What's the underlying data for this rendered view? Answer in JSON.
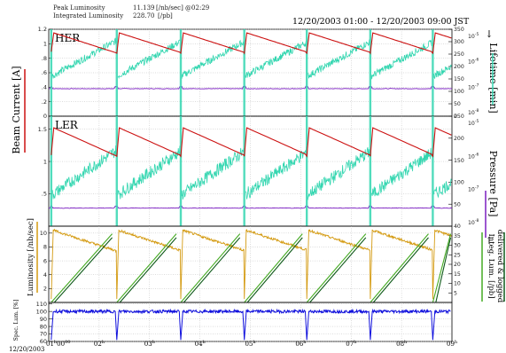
{
  "header": {
    "peak_label": "Peak Luminosity",
    "peak_value": "11.139",
    "peak_unit": "[/nb/sec] @02:29",
    "integrated_label": "Integrated Luminosity",
    "integrated_value": "228.70",
    "integrated_unit": "[/pb]",
    "time_range": "12/20/2003 01:00 - 12/20/2003 09:00 JST"
  },
  "colors": {
    "current": "#cc1111",
    "lifetime": "#33d6b0",
    "pressure": "#7a1ec0",
    "lum_online": "#d49a10",
    "lum_delivered": "#44aa22",
    "lum_logged": "#0f5a1a",
    "spec_lum": "#1010dd"
  },
  "chart_data": [
    {
      "type": "line",
      "ring_label": "HER",
      "ylabel": "Beam Current [A]",
      "y2label": "Lifetime [min]",
      "y3label": "Pressure [Pa]",
      "ylim": [
        0,
        1.2
      ],
      "yticks": [
        0,
        0.2,
        0.4,
        0.6,
        0.8,
        1.0,
        1.2
      ],
      "ytick_labels": [
        "0",
        ".2",
        ".4",
        ".6",
        ".8",
        "1",
        "1.2"
      ],
      "y2lim": [
        0,
        350
      ],
      "y2ticks": [
        0,
        50,
        100,
        150,
        200,
        250,
        300,
        350
      ],
      "y3_ticks": [
        "10-5",
        "10-6",
        "10-7",
        "10-8"
      ],
      "x_hours": [
        1,
        9
      ],
      "injection_hours": [
        1.05,
        2.35,
        3.62,
        4.88,
        6.12,
        7.38,
        8.62
      ],
      "current_peak": 1.15,
      "current_min": 0.87,
      "lifetime_start": 160,
      "lifetime_end": 300,
      "pressure_level": 0.38,
      "series": [
        {
          "name": "Beam Current",
          "color_key": "current"
        },
        {
          "name": "Lifetime",
          "color_key": "lifetime"
        },
        {
          "name": "Pressure",
          "color_key": "pressure"
        }
      ]
    },
    {
      "type": "line",
      "ring_label": "LER",
      "ylim": [
        0,
        1.7
      ],
      "yticks": [
        0.5,
        1.0,
        1.5
      ],
      "ytick_labels": [
        ".5",
        "1",
        "1.5"
      ],
      "y2lim": [
        0,
        250
      ],
      "y2ticks": [
        50,
        100,
        150,
        200,
        250
      ],
      "y3_ticks": [
        "10-5",
        "10-6",
        "10-7",
        "10-8"
      ],
      "x_hours": [
        1,
        9
      ],
      "injection_hours": [
        1.05,
        2.35,
        3.62,
        4.88,
        6.12,
        7.38,
        8.62
      ],
      "current_peak": 1.52,
      "current_min": 1.08,
      "lifetime_start": 70,
      "lifetime_end": 170,
      "pressure_level": 0.28,
      "series": [
        {
          "name": "Beam Current",
          "color_key": "current"
        },
        {
          "name": "Lifetime",
          "color_key": "lifetime"
        },
        {
          "name": "Pressure",
          "color_key": "pressure"
        }
      ]
    },
    {
      "type": "line",
      "ylabel": "Luminosity [/nb/sec]",
      "y2label_line1": "Integ. Lum. [/pb]",
      "y2label_line2": "delivered & logged",
      "ylim": [
        0,
        11
      ],
      "yticks": [
        2,
        4,
        6,
        8,
        10
      ],
      "ytick_labels": [
        "2",
        "4",
        "6",
        "8",
        "10"
      ],
      "y2lim": [
        0,
        40
      ],
      "y2ticks": [
        5,
        10,
        15,
        20,
        25,
        30,
        35,
        40
      ],
      "x_hours": [
        1,
        9
      ],
      "injection_hours": [
        1.05,
        2.35,
        3.62,
        4.88,
        6.12,
        7.38,
        8.62
      ],
      "lum_peak": 10.5,
      "lum_min": 7.5,
      "integ_end_delivered": 36,
      "integ_end_logged": 34,
      "series": [
        {
          "name": "Luminosity",
          "color_key": "lum_online"
        },
        {
          "name": "Integ. Lum. delivered",
          "color_key": "lum_delivered"
        },
        {
          "name": "Integ. Lum. logged",
          "color_key": "lum_logged"
        }
      ]
    },
    {
      "type": "line",
      "ylabel": "Spec. Lum. [%]",
      "ylim": [
        60,
        112
      ],
      "yticks": [
        60,
        70,
        80,
        90,
        100,
        110
      ],
      "ytick_labels": [
        "60",
        "70",
        "80",
        "90",
        "100",
        "110"
      ],
      "x_hours": [
        1,
        9
      ],
      "injection_hours": [
        1.05,
        2.35,
        3.62,
        4.88,
        6.12,
        7.38,
        8.62
      ],
      "level": 100,
      "series": [
        {
          "name": "Spec. Lum.",
          "color_key": "spec_lum"
        }
      ]
    }
  ],
  "xaxis": {
    "ticks": [
      1,
      2,
      3,
      4,
      5,
      6,
      7,
      8,
      9
    ],
    "labels": [
      "01",
      "02",
      "03",
      "04",
      "05",
      "06",
      "07",
      "08",
      "09"
    ],
    "first_label_extra": "00",
    "first_label_extra2": "00",
    "unit_sup": "h",
    "date_label": "12/20/2003"
  }
}
